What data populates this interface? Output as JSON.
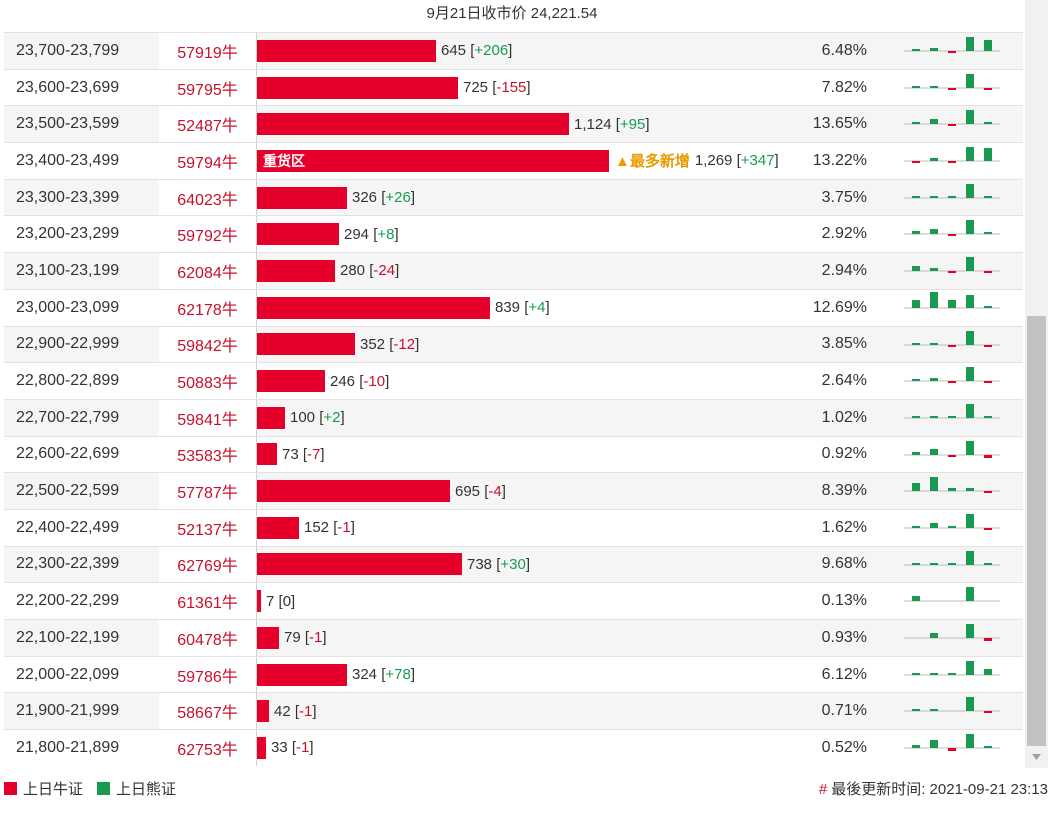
{
  "header": {
    "title": "9月21日收市价 24,221.54"
  },
  "colors": {
    "bull": "#e4002b",
    "bear": "#1a9a50",
    "hot": "#e89a00"
  },
  "rows": [
    {
      "range": "23,700-23,799",
      "code": "57919牛",
      "count": 645,
      "count_text": "645",
      "change": "+206",
      "pct": "6.48%",
      "spark": [
        [
          0.1,
          "g"
        ],
        [
          0.2,
          "g"
        ],
        [
          0.1,
          "r"
        ],
        [
          0.9,
          "g"
        ],
        [
          0.7,
          "g"
        ]
      ]
    },
    {
      "range": "23,600-23,699",
      "code": "59795牛",
      "count": 725,
      "count_text": "725",
      "change": "-155",
      "pct": "7.82%",
      "spark": [
        [
          0.05,
          "g"
        ],
        [
          0.05,
          "g"
        ],
        [
          0.05,
          "r"
        ],
        [
          0.9,
          "g"
        ],
        [
          0.2,
          "r"
        ]
      ]
    },
    {
      "range": "23,500-23,599",
      "code": "52487牛",
      "count": 1124,
      "count_text": "1,124",
      "change": "+95",
      "pct": "13.65%",
      "spark": [
        [
          0.1,
          "g"
        ],
        [
          0.3,
          "g"
        ],
        [
          0.1,
          "r"
        ],
        [
          0.9,
          "g"
        ],
        [
          0.1,
          "g"
        ]
      ]
    },
    {
      "range": "23,400-23,499",
      "code": "59794牛",
      "count": 1269,
      "count_text": "1,269",
      "change": "+347",
      "pct": "13.22%",
      "inner_label": "重货区",
      "hot_label": "▲最多新增",
      "spark": [
        [
          0.1,
          "r"
        ],
        [
          0.2,
          "g"
        ],
        [
          0.1,
          "r"
        ],
        [
          0.9,
          "g"
        ],
        [
          0.8,
          "g"
        ]
      ]
    },
    {
      "range": "23,300-23,399",
      "code": "64023牛",
      "count": 326,
      "count_text": "326",
      "change": "+26",
      "pct": "3.75%",
      "spark": [
        [
          0.05,
          "g"
        ],
        [
          0.05,
          "g"
        ],
        [
          0.05,
          "g"
        ],
        [
          0.9,
          "g"
        ],
        [
          0.05,
          "g"
        ]
      ]
    },
    {
      "range": "23,200-23,299",
      "code": "59792牛",
      "count": 294,
      "count_text": "294",
      "change": "+8",
      "pct": "2.92%",
      "spark": [
        [
          0.2,
          "g"
        ],
        [
          0.3,
          "g"
        ],
        [
          0.1,
          "r"
        ],
        [
          0.9,
          "g"
        ],
        [
          0.05,
          "g"
        ]
      ]
    },
    {
      "range": "23,100-23,199",
      "code": "62084牛",
      "count": 280,
      "count_text": "280",
      "change": "-24",
      "pct": "2.94%",
      "spark": [
        [
          0.3,
          "g"
        ],
        [
          0.2,
          "g"
        ],
        [
          0.1,
          "r"
        ],
        [
          0.9,
          "g"
        ],
        [
          0.2,
          "r"
        ]
      ]
    },
    {
      "range": "23,000-23,099",
      "code": "62178牛",
      "count": 839,
      "count_text": "839",
      "change": "+4",
      "pct": "12.69%",
      "spark": [
        [
          0.5,
          "g"
        ],
        [
          1.0,
          "g"
        ],
        [
          0.5,
          "g"
        ],
        [
          0.8,
          "g"
        ],
        [
          0.05,
          "g"
        ]
      ]
    },
    {
      "range": "22,900-22,999",
      "code": "59842牛",
      "count": 352,
      "count_text": "352",
      "change": "-12",
      "pct": "3.85%",
      "spark": [
        [
          0.1,
          "g"
        ],
        [
          0.05,
          "g"
        ],
        [
          0.1,
          "r"
        ],
        [
          0.9,
          "g"
        ],
        [
          0.2,
          "r"
        ]
      ]
    },
    {
      "range": "22,800-22,899",
      "code": "50883牛",
      "count": 246,
      "count_text": "246",
      "change": "-10",
      "pct": "2.64%",
      "spark": [
        [
          0.1,
          "g"
        ],
        [
          0.2,
          "g"
        ],
        [
          0.1,
          "r"
        ],
        [
          0.9,
          "g"
        ],
        [
          0.2,
          "r"
        ]
      ]
    },
    {
      "range": "22,700-22,799",
      "code": "59841牛",
      "count": 100,
      "count_text": "100",
      "change": "+2",
      "pct": "1.02%",
      "spark": [
        [
          0.05,
          "g"
        ],
        [
          0.1,
          "g"
        ],
        [
          0.05,
          "g"
        ],
        [
          0.9,
          "g"
        ],
        [
          0.05,
          "g"
        ]
      ]
    },
    {
      "range": "22,600-22,699",
      "code": "53583牛",
      "count": 73,
      "count_text": "73",
      "change": "-7",
      "pct": "0.92%",
      "spark": [
        [
          0.2,
          "g"
        ],
        [
          0.4,
          "g"
        ],
        [
          0.2,
          "r"
        ],
        [
          0.9,
          "g"
        ],
        [
          0.3,
          "r"
        ]
      ]
    },
    {
      "range": "22,500-22,599",
      "code": "57787牛",
      "count": 695,
      "count_text": "695",
      "change": "-4",
      "pct": "8.39%",
      "spark": [
        [
          0.5,
          "g"
        ],
        [
          0.9,
          "g"
        ],
        [
          0.2,
          "g"
        ],
        [
          0.2,
          "g"
        ],
        [
          0.05,
          "r"
        ]
      ]
    },
    {
      "range": "22,400-22,499",
      "code": "52137牛",
      "count": 152,
      "count_text": "152",
      "change": "-1",
      "pct": "1.62%",
      "spark": [
        [
          0.1,
          "g"
        ],
        [
          0.3,
          "g"
        ],
        [
          0.05,
          "g"
        ],
        [
          0.9,
          "g"
        ],
        [
          0.05,
          "r"
        ]
      ]
    },
    {
      "range": "22,300-22,399",
      "code": "62769牛",
      "count": 738,
      "count_text": "738",
      "change": "+30",
      "pct": "9.68%",
      "spark": [
        [
          0.05,
          "g"
        ],
        [
          0.05,
          "g"
        ],
        [
          0.05,
          "g"
        ],
        [
          0.9,
          "g"
        ],
        [
          0.05,
          "g"
        ]
      ]
    },
    {
      "range": "22,200-22,299",
      "code": "61361牛",
      "count": 7,
      "count_text": "7",
      "change": "0",
      "pct": "0.13%",
      "spark": [
        [
          0.3,
          "g"
        ],
        [
          0,
          "g"
        ],
        [
          0,
          "g"
        ],
        [
          0.9,
          "g"
        ],
        [
          0,
          "g"
        ]
      ]
    },
    {
      "range": "22,100-22,199",
      "code": "60478牛",
      "count": 79,
      "count_text": "79",
      "change": "-1",
      "pct": "0.93%",
      "spark": [
        [
          0,
          "g"
        ],
        [
          0.3,
          "g"
        ],
        [
          0,
          "g"
        ],
        [
          0.9,
          "g"
        ],
        [
          0.3,
          "r"
        ]
      ]
    },
    {
      "range": "22,000-22,099",
      "code": "59786牛",
      "count": 324,
      "count_text": "324",
      "change": "+78",
      "pct": "6.12%",
      "spark": [
        [
          0.05,
          "g"
        ],
        [
          0.05,
          "g"
        ],
        [
          0.05,
          "g"
        ],
        [
          0.9,
          "g"
        ],
        [
          0.4,
          "g"
        ]
      ]
    },
    {
      "range": "21,900-21,999",
      "code": "58667牛",
      "count": 42,
      "count_text": "42",
      "change": "-1",
      "pct": "0.71%",
      "spark": [
        [
          0.05,
          "g"
        ],
        [
          0.05,
          "g"
        ],
        [
          0,
          "g"
        ],
        [
          0.9,
          "g"
        ],
        [
          0.1,
          "r"
        ]
      ]
    },
    {
      "range": "21,800-21,899",
      "code": "62753牛",
      "count": 33,
      "count_text": "33",
      "change": "-1",
      "pct": "0.52%",
      "spark": [
        [
          0.2,
          "g"
        ],
        [
          0.5,
          "g"
        ],
        [
          0.3,
          "r"
        ],
        [
          0.9,
          "g"
        ],
        [
          0.1,
          "g"
        ]
      ]
    }
  ],
  "legend": {
    "bull_label": "上日牛证",
    "bear_label": "上日熊证"
  },
  "update": {
    "hash": "#",
    "text": "最後更新时间: 2021-09-21 23:13"
  }
}
